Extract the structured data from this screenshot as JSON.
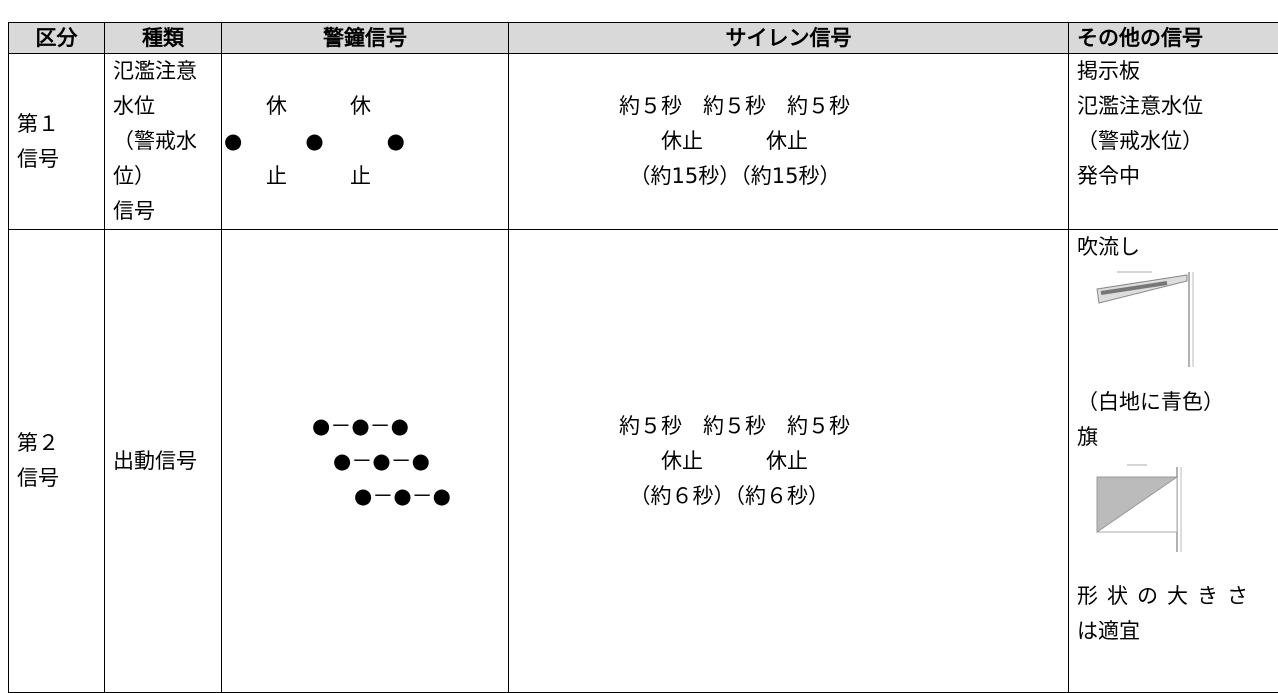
{
  "table": {
    "header": [
      "区分",
      "種類",
      "警鐘信号",
      "サイレン信号",
      "その他の信号"
    ],
    "rows": [
      [
        [
          "第１",
          "信号"
        ],
        [
          "氾濫注意水位",
          "（警戒水位）",
          "信号"
        ],
        [
          "　　休　　　休",
          "●　　　●　　　●",
          "　　止　　　止"
        ],
        [
          "約５秒　約５秒　約５秒",
          "　　休止　　　休止",
          "　（約15秒）（約15秒）"
        ],
        [
          "掲示板",
          "氾濫注意水位",
          "（警戒水位）",
          "発令中"
        ]
      ],
      [
        [
          "第２",
          "信号"
        ],
        [
          "出動信号"
        ],
        [
          "●－●－●",
          "●－●－●",
          "●－●－●"
        ],
        [
          "約５秒　約５秒　約５秒",
          "　　休止　　　休止",
          "　（約６秒）（約６秒）"
        ],
        [
          "吹流し",
          "（白地に青色）",
          "旗",
          "形状の大きさ",
          "は適宜"
        ]
      ]
    ]
  }
}
